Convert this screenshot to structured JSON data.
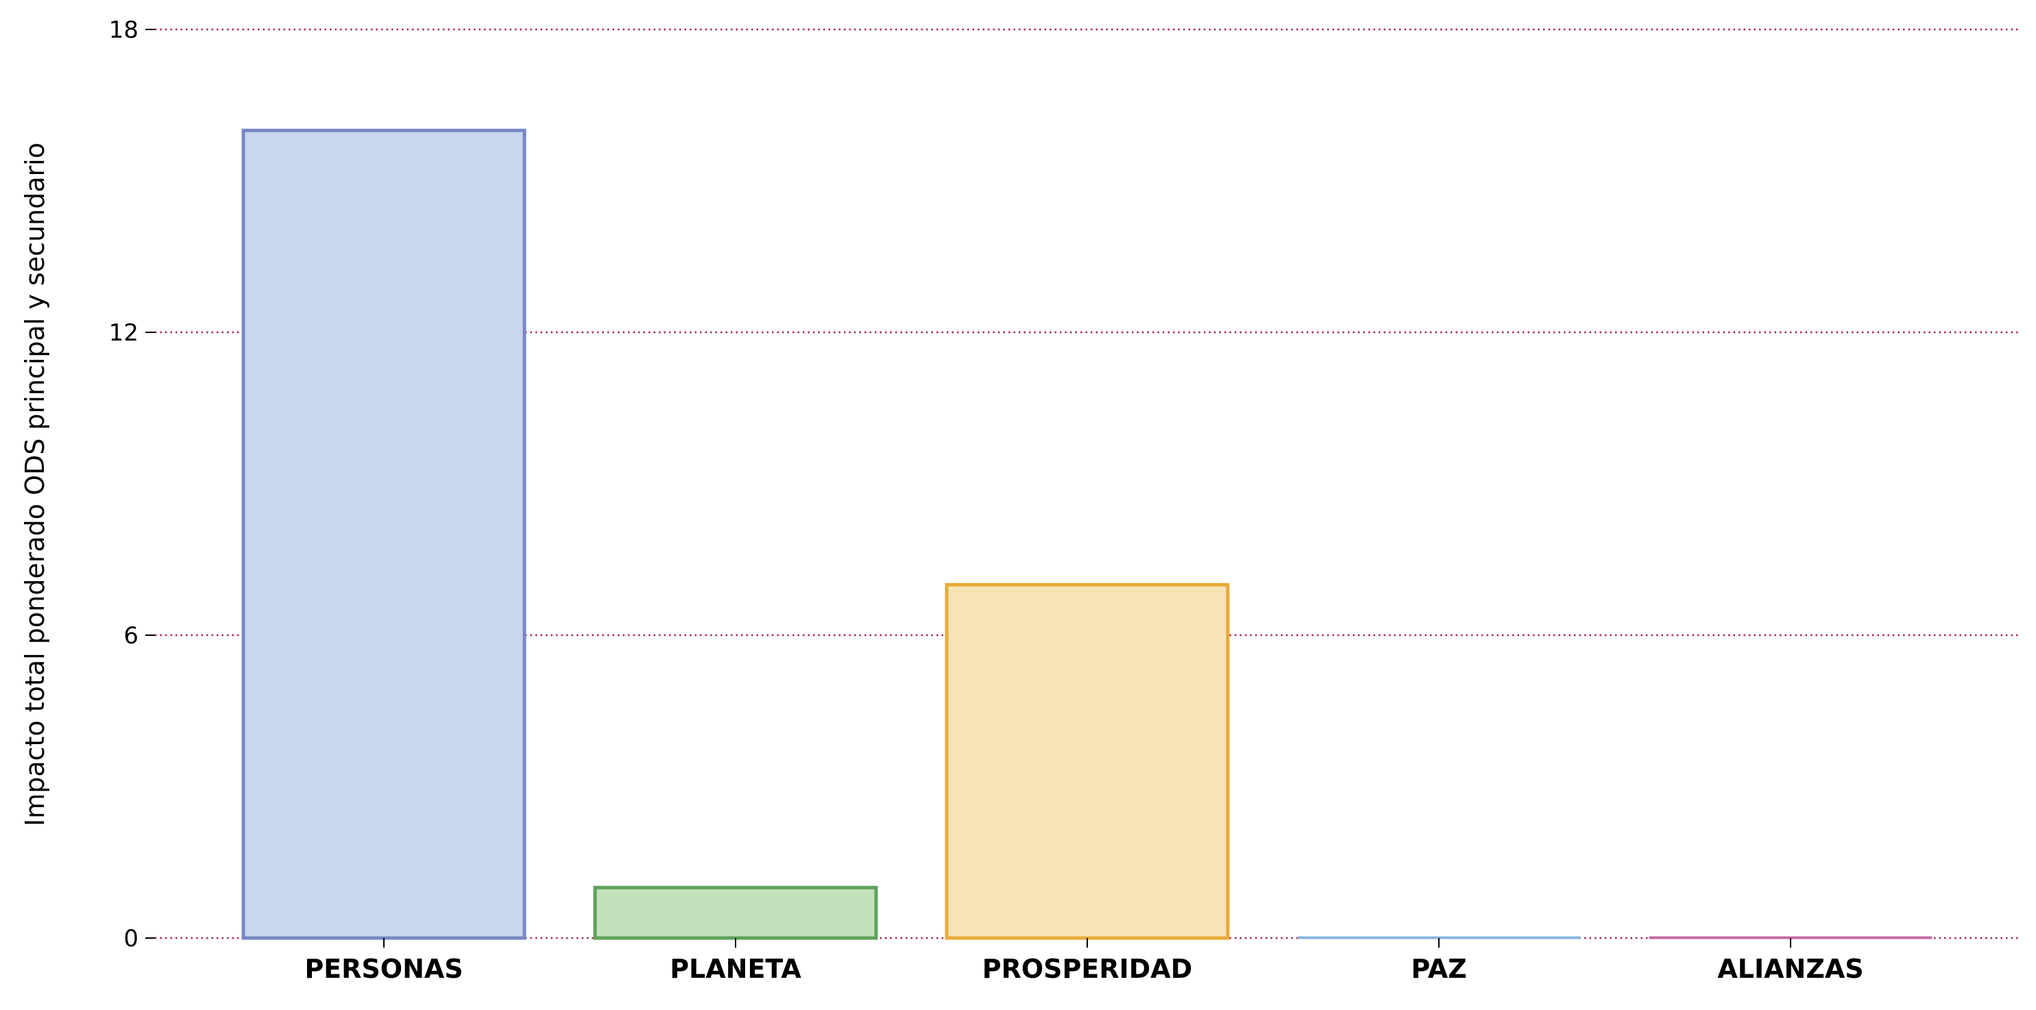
{
  "chart_data": {
    "type": "bar",
    "title": "",
    "xlabel": "",
    "ylabel": "Impacto total ponderado ODS principal y secundario",
    "categories": [
      "PERSONAS",
      "PLANETA",
      "PROSPERIDAD",
      "PAZ",
      "ALIANZAS"
    ],
    "values": [
      16,
      1,
      7,
      0,
      0
    ],
    "ylim": [
      0,
      18
    ],
    "yticks": [
      0,
      6,
      12,
      18
    ],
    "ytick_labels": [
      "0",
      "6",
      "12",
      "18"
    ],
    "grid": "horizontal dotted",
    "legend": "none",
    "bar_fill_colors": [
      "#c8d6f0",
      "#c3e2bc",
      "#f9e2b4",
      "#d6e6f5",
      "#f0c8e0"
    ],
    "bar_edge_colors": [
      "#7689c4",
      "#5ea25a",
      "#e8ab3a",
      "#8ab4de",
      "#c46aa8"
    ],
    "grid_color": "#a8213a"
  }
}
